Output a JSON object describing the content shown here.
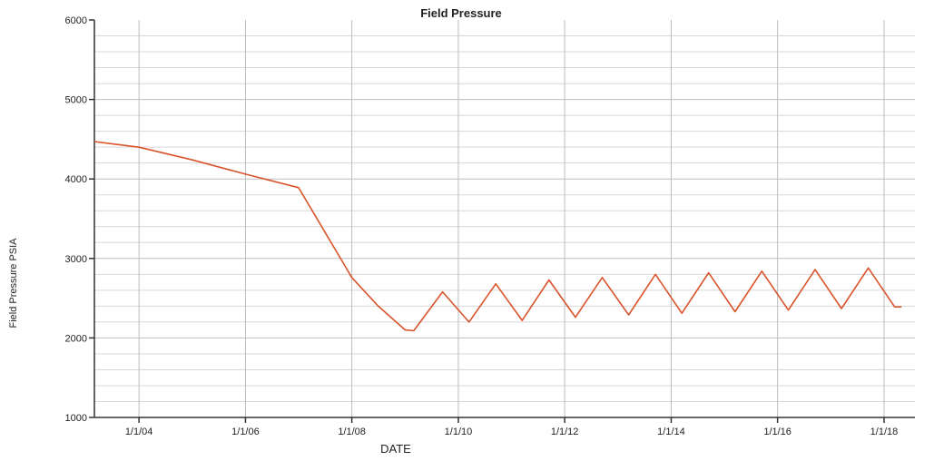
{
  "chart_data": {
    "type": "line",
    "title": "Field Pressure",
    "xlabel": "DATE",
    "ylabel": "Field Pressure PSIA",
    "ylim": [
      1000,
      6000
    ],
    "xlim": [
      "2003-03-01",
      "2018-08-01"
    ],
    "yticks": [
      1000,
      2000,
      3000,
      4000,
      5000,
      6000
    ],
    "ytick_labels": [
      "1000",
      "2000",
      "3000",
      "4000",
      "5000",
      "6000"
    ],
    "xticks": [
      "2004-01-01",
      "2006-01-01",
      "2008-01-01",
      "2010-01-01",
      "2012-01-01",
      "2014-01-01",
      "2016-01-01",
      "2018-01-01"
    ],
    "xtick_labels": [
      "1/1/04",
      "1/1/06",
      "1/1/08",
      "1/1/10",
      "1/1/12",
      "1/1/14",
      "1/1/16",
      "1/1/18"
    ],
    "grid": true,
    "line_color": "#d9542b",
    "series": [
      {
        "points": [
          [
            "2003-03-01",
            4470
          ],
          [
            "2004-01-01",
            4400
          ],
          [
            "2005-01-01",
            4240
          ],
          [
            "2006-01-01",
            4060
          ],
          [
            "2007-01-01",
            3890
          ],
          [
            "2008-01-01",
            2760
          ],
          [
            "2008-07-01",
            2400
          ],
          [
            "2009-01-01",
            2100
          ],
          [
            "2009-03-01",
            2090
          ],
          [
            "2009-09-15",
            2580
          ],
          [
            "2010-03-15",
            2200
          ],
          [
            "2010-09-15",
            2680
          ],
          [
            "2011-03-15",
            2220
          ],
          [
            "2011-09-15",
            2730
          ],
          [
            "2012-03-15",
            2260
          ],
          [
            "2012-09-15",
            2760
          ],
          [
            "2013-03-15",
            2290
          ],
          [
            "2013-09-15",
            2800
          ],
          [
            "2014-03-15",
            2310
          ],
          [
            "2014-09-15",
            2820
          ],
          [
            "2015-03-15",
            2330
          ],
          [
            "2015-09-15",
            2840
          ],
          [
            "2016-03-15",
            2350
          ],
          [
            "2016-09-15",
            2860
          ],
          [
            "2017-03-15",
            2370
          ],
          [
            "2017-09-15",
            2880
          ],
          [
            "2018-03-15",
            2390
          ],
          [
            "2018-05-01",
            2390
          ]
        ]
      }
    ]
  }
}
